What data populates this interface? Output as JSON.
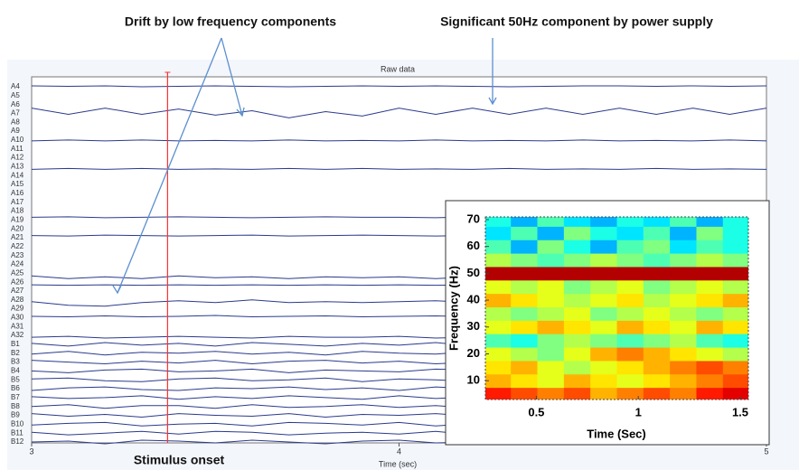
{
  "chart_data": [
    {
      "type": "line",
      "title": "Raw data",
      "x_label": "Time (sec)",
      "annotations": [
        "Drift by low frequency components",
        "Significant 50Hz component by power supply",
        "Stimulus onset"
      ],
      "stimulus_onset": 3.37,
      "xlim": [
        3,
        5
      ],
      "xticks": [
        3,
        4,
        5
      ],
      "categories": [
        "A4",
        "A5",
        "A6",
        "A7",
        "A8",
        "A9",
        "A10",
        "A11",
        "A12",
        "A13",
        "A14",
        "A15",
        "A16",
        "A17",
        "A18",
        "A19",
        "A20",
        "A21",
        "A22",
        "A23",
        "A24",
        "A25",
        "A26",
        "A27",
        "A28",
        "A29",
        "A30",
        "A31",
        "A32",
        "B1",
        "B2",
        "B3",
        "B4",
        "B5",
        "B6",
        "B7",
        "B8",
        "B9",
        "B10",
        "B11",
        "B12"
      ],
      "x": [
        3.0,
        3.1,
        3.2,
        3.3,
        3.4,
        3.5,
        3.6,
        3.7,
        3.8,
        3.9,
        4.0,
        4.1,
        4.2,
        4.3,
        4.4,
        4.5,
        4.6,
        4.7,
        4.8,
        4.9,
        5.0
      ],
      "line_color": "#2b3a8c",
      "onset_color": "#ff3030",
      "series": [
        {
          "name": "A4",
          "values": [
            0.1,
            0.05,
            0.1,
            0.0,
            0.05,
            0.1,
            0.05,
            0.0,
            0.05,
            0.1,
            0.05,
            0.1,
            0.05,
            0.0,
            0.05,
            0.1,
            0.1,
            0.05,
            0.1,
            0.05,
            0.1
          ]
        },
        {
          "name": "A7",
          "values": [
            0.6,
            -0.1,
            0.6,
            -0.1,
            0.5,
            -0.2,
            0.3,
            -0.5,
            0.2,
            -0.3,
            0.6,
            -0.1,
            0.6,
            -0.1,
            0.6,
            -0.1,
            0.6,
            -0.1,
            0.6,
            -0.1,
            0.6
          ]
        },
        {
          "name": "A10",
          "values": [
            -0.1,
            0,
            -0.1,
            0,
            -0.1,
            -0.05,
            -0.1,
            0,
            -0.1,
            -0.05,
            -0.1,
            0,
            -0.1,
            -0.05,
            -0.1,
            0,
            -0.1,
            -0.05,
            -0.1,
            0,
            -0.1
          ]
        },
        {
          "name": "A13",
          "values": [
            -0.3,
            -0.2,
            -0.3,
            -0.2,
            -0.3,
            -0.25,
            -0.3,
            -0.2,
            -0.3,
            -0.2,
            -0.3,
            -0.25,
            -0.3,
            -0.2,
            -0.3,
            -0.25,
            -0.3,
            -0.2,
            -0.3,
            -0.25,
            -0.3
          ]
        },
        {
          "name": "A19",
          "values": [
            0.3,
            0.35,
            0.25,
            0.3,
            0.35,
            0.3,
            0.25,
            0.3,
            0.35,
            0.3,
            0.3,
            0.25,
            0.35,
            0.3,
            0.3,
            0.35,
            0.25,
            0.3,
            0.3,
            0.35,
            0.3
          ]
        },
        {
          "name": "A21",
          "values": [
            0.25,
            0.2,
            0.3,
            0.25,
            0.2,
            0.25,
            0.3,
            0.2,
            0.25,
            0.3,
            0.25,
            0.2,
            0.25,
            0.3,
            0.2,
            0.25,
            0.3,
            0.25,
            0.2,
            0.25,
            0.3
          ]
        },
        {
          "name": "A25",
          "values": [
            -0.3,
            -0.6,
            -0.4,
            -0.6,
            -0.3,
            -0.5,
            -0.4,
            -0.6,
            -0.4,
            -0.5,
            -0.4,
            -0.6,
            -0.4,
            -0.5,
            -0.4,
            -0.6,
            -0.4,
            -0.5,
            -0.4,
            -0.5,
            -0.4
          ]
        },
        {
          "name": "A26",
          "values": [
            -0.3,
            -0.35,
            -0.3,
            -0.35,
            -0.3,
            -0.35,
            -0.3,
            -0.35,
            -0.3,
            -0.35,
            -0.3,
            -0.35,
            -0.3,
            -0.35,
            -0.3,
            -0.35,
            -0.3,
            -0.35,
            -0.3,
            -0.35,
            -0.3
          ]
        },
        {
          "name": "A28",
          "values": [
            -0.2,
            -0.6,
            -0.7,
            -0.3,
            -0.1,
            -0.3,
            0.0,
            -0.3,
            -0.2,
            -0.3,
            -0.2,
            -0.1,
            -0.3,
            -0.2,
            -0.1,
            -0.3,
            -0.2,
            -0.1,
            -0.3,
            -0.2,
            -0.2
          ]
        },
        {
          "name": "A30",
          "values": [
            0.15,
            0.1,
            0.2,
            0.1,
            0.15,
            0.25,
            0.1,
            0.15,
            0.2,
            0.1,
            0.15,
            0.2,
            0.1,
            0.15,
            0.2,
            0.1,
            0.15,
            0.2,
            0.1,
            0.15,
            0.15
          ]
        },
        {
          "name": "A32",
          "values": [
            -0.2,
            -0.1,
            -0.3,
            -0.2,
            -0.1,
            -0.2,
            -0.3,
            -0.1,
            -0.2,
            -0.2,
            -0.1,
            -0.3,
            -0.2,
            -0.1,
            -0.2,
            -0.3,
            -0.2,
            -0.1,
            -0.2,
            -0.3,
            -0.2
          ]
        },
        {
          "name": "B1",
          "values": [
            0.1,
            -0.2,
            0.2,
            -0.1,
            0.1,
            -0.2,
            0.2,
            0.0,
            -0.2,
            0.1,
            -0.1,
            0.2,
            -0.2,
            0.1,
            0.0,
            -0.1,
            0.2,
            -0.2,
            0.1,
            -0.1,
            0.1
          ]
        },
        {
          "name": "B2",
          "values": [
            -0.1,
            0.2,
            -0.2,
            0.1,
            0.0,
            0.2,
            -0.1,
            0.1,
            -0.2,
            0.2,
            0.0,
            -0.1,
            0.2,
            -0.2,
            0.1,
            0.1,
            -0.2,
            0.2,
            -0.1,
            0.1,
            0.0
          ]
        },
        {
          "name": "B3",
          "values": [
            0.2,
            0.0,
            -0.2,
            0.1,
            -0.1,
            0.2,
            -0.2,
            0.1,
            0.2,
            -0.1,
            0.1,
            -0.2,
            0.0,
            0.2,
            -0.1,
            0.1,
            -0.2,
            0.1,
            0.2,
            -0.1,
            0.1
          ]
        },
        {
          "name": "B4",
          "values": [
            0.0,
            -0.2,
            0.1,
            0.2,
            -0.1,
            0.0,
            0.2,
            -0.2,
            0.1,
            0.0,
            -0.1,
            0.2,
            0.1,
            -0.2,
            0.1,
            0.0,
            0.2,
            -0.1,
            0.0,
            0.2,
            -0.1
          ]
        },
        {
          "name": "B5",
          "values": [
            0.1,
            0.2,
            -0.1,
            -0.2,
            0.1,
            0.2,
            -0.1,
            0.0,
            0.2,
            -0.2,
            0.1,
            0.0,
            -0.2,
            0.2,
            0.1,
            -0.1,
            0.0,
            0.2,
            -0.2,
            0.1,
            0.1
          ]
        },
        {
          "name": "B6",
          "values": [
            -0.2,
            0.1,
            0.2,
            -0.1,
            -0.2,
            0.1,
            0.0,
            0.2,
            -0.1,
            0.1,
            -0.2,
            0.2,
            0.0,
            -0.1,
            0.2,
            -0.2,
            0.1,
            0.0,
            -0.1,
            0.2,
            0.0
          ]
        },
        {
          "name": "B7",
          "values": [
            0.1,
            -0.1,
            0.0,
            0.2,
            -0.2,
            0.1,
            -0.1,
            0.2,
            0.0,
            -0.2,
            0.2,
            -0.1,
            0.1,
            0.0,
            -0.2,
            0.2,
            -0.1,
            0.1,
            0.2,
            -0.2,
            0.1
          ]
        },
        {
          "name": "B8",
          "values": [
            0.0,
            0.2,
            -0.2,
            0.1,
            0.1,
            -0.2,
            0.2,
            -0.1,
            0.0,
            0.2,
            -0.1,
            0.1,
            -0.2,
            0.2,
            0.0,
            -0.1,
            0.1,
            -0.2,
            0.2,
            0.0,
            -0.1
          ]
        },
        {
          "name": "B9",
          "values": [
            0.2,
            -0.1,
            0.1,
            -0.2,
            0.2,
            0.0,
            -0.1,
            0.2,
            -0.2,
            0.1,
            0.0,
            0.2,
            -0.1,
            0.1,
            -0.2,
            0.2,
            0.0,
            -0.1,
            0.1,
            -0.2,
            0.2
          ]
        },
        {
          "name": "B10",
          "values": [
            -0.1,
            0.1,
            0.2,
            -0.2,
            0.0,
            0.1,
            -0.2,
            0.2,
            0.1,
            -0.1,
            0.2,
            -0.2,
            0.1,
            0.0,
            0.2,
            -0.1,
            -0.2,
            0.1,
            0.0,
            0.2,
            -0.1
          ]
        },
        {
          "name": "B11",
          "values": [
            0.1,
            -0.2,
            0.0,
            0.2,
            -0.1,
            0.2,
            0.1,
            -0.2,
            0.0,
            0.1,
            -0.1,
            0.2,
            -0.2,
            0.1,
            0.2,
            0.0,
            -0.2,
            0.1,
            0.2,
            -0.1,
            0.0
          ]
        },
        {
          "name": "B12",
          "values": [
            0.0,
            0.1,
            -0.2,
            0.2,
            0.1,
            -0.1,
            0.2,
            0.0,
            -0.2,
            0.1,
            0.2,
            -0.1,
            0.0,
            0.2,
            -0.2,
            0.1,
            0.1,
            -0.2,
            0.0,
            0.2,
            0.1
          ]
        }
      ]
    },
    {
      "type": "heatmap",
      "x_label": "Time (Sec)",
      "y_label": "Frequency (Hz)",
      "colormap": "jet",
      "xlim": [
        0.25,
        1.54
      ],
      "xticks": [
        0.5,
        1,
        1.5
      ],
      "ylim": [
        3,
        71
      ],
      "yticks": [
        10,
        20,
        30,
        40,
        50,
        60,
        70
      ],
      "x": [
        0.31,
        0.44,
        0.57,
        0.7,
        0.83,
        0.96,
        1.09,
        1.22,
        1.35,
        1.48
      ],
      "y": [
        5,
        10,
        15,
        20,
        25,
        30,
        35,
        40,
        45,
        50,
        55,
        60,
        65,
        70
      ],
      "values": [
        [
          0.85,
          0.8,
          0.75,
          0.8,
          0.7,
          0.75,
          0.8,
          0.75,
          0.85,
          0.9
        ],
        [
          0.7,
          0.65,
          0.6,
          0.7,
          0.65,
          0.6,
          0.65,
          0.7,
          0.75,
          0.8
        ],
        [
          0.65,
          0.7,
          0.6,
          0.55,
          0.6,
          0.65,
          0.7,
          0.75,
          0.8,
          0.75
        ],
        [
          0.6,
          0.55,
          0.5,
          0.6,
          0.7,
          0.75,
          0.7,
          0.65,
          0.6,
          0.55
        ],
        [
          0.45,
          0.4,
          0.5,
          0.55,
          0.5,
          0.45,
          0.5,
          0.55,
          0.45,
          0.4
        ],
        [
          0.6,
          0.65,
          0.7,
          0.65,
          0.6,
          0.7,
          0.65,
          0.6,
          0.7,
          0.65
        ],
        [
          0.55,
          0.5,
          0.55,
          0.6,
          0.5,
          0.55,
          0.6,
          0.55,
          0.5,
          0.55
        ],
        [
          0.7,
          0.65,
          0.6,
          0.55,
          0.6,
          0.65,
          0.55,
          0.6,
          0.65,
          0.7
        ],
        [
          0.6,
          0.55,
          0.6,
          0.5,
          0.55,
          0.6,
          0.5,
          0.55,
          0.6,
          0.55
        ],
        [
          0.95,
          0.95,
          0.95,
          0.95,
          0.95,
          0.95,
          0.95,
          0.95,
          0.95,
          0.95
        ],
        [
          0.55,
          0.5,
          0.45,
          0.5,
          0.55,
          0.5,
          0.45,
          0.5,
          0.55,
          0.5
        ],
        [
          0.45,
          0.3,
          0.5,
          0.4,
          0.3,
          0.45,
          0.5,
          0.35,
          0.45,
          0.4
        ],
        [
          0.35,
          0.45,
          0.3,
          0.5,
          0.4,
          0.35,
          0.45,
          0.3,
          0.5,
          0.4
        ],
        [
          0.4,
          0.3,
          0.45,
          0.35,
          0.3,
          0.4,
          0.35,
          0.45,
          0.3,
          0.4
        ]
      ]
    }
  ]
}
